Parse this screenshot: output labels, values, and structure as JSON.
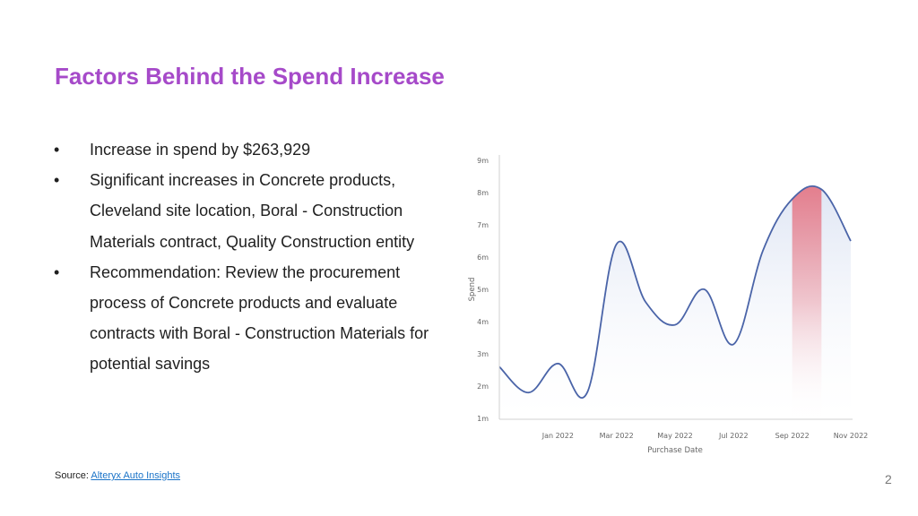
{
  "slide": {
    "title": "Factors Behind the Spend Increase",
    "bullet_symbol": "•",
    "bullets": [
      "Increase in spend by $263,929",
      "Significant increases in Concrete products, Cleveland site location, Boral - Construction Materials contract, Quality Construction entity",
      "Recommendation: Review the procurement process of Concrete products and evaluate contracts with Boral - Construction Materials for potential savings"
    ],
    "source_label": "Source:",
    "source_link": "Alteryx Auto Insights",
    "page_number": "2"
  },
  "chart_data": {
    "type": "area",
    "xlabel": "Purchase Date",
    "ylabel": "Spend",
    "x_ticks": [
      "Jan 2022",
      "Mar 2022",
      "May 2022",
      "Jul 2022",
      "Sep 2022",
      "Nov 2022"
    ],
    "y_ticks": [
      "1m",
      "2m",
      "3m",
      "4m",
      "5m",
      "6m",
      "7m",
      "8m",
      "9m"
    ],
    "ylim": [
      1,
      9
    ],
    "xlim": [
      "Nov 2021",
      "Nov 2022"
    ],
    "series": [
      {
        "x": [
          "Nov 2021",
          "Dec 2021",
          "Jan 2022",
          "Feb 2022",
          "Mar 2022",
          "Apr 2022",
          "May 2022",
          "Jun 2022",
          "Jul 2022",
          "Aug 2022",
          "Sep 2022",
          "Oct 2022",
          "Nov 2022"
        ],
        "values": [
          2.6,
          1.8,
          2.7,
          1.8,
          6.4,
          4.6,
          3.9,
          5.0,
          3.3,
          6.2,
          7.8,
          8.1,
          6.5
        ]
      }
    ],
    "highlight": {
      "from": "Sep 2022",
      "to": "Oct 2022",
      "color": "#e56b7a"
    },
    "line_color": "#4a64a8",
    "fill_color": "#dde4f3",
    "grid": false
  }
}
